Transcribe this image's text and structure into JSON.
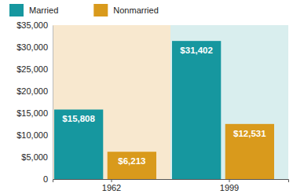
{
  "chart_data": {
    "type": "bar",
    "categories": [
      "1962",
      "1999"
    ],
    "series": [
      {
        "name": "Married",
        "color": "#16979f",
        "values": [
          15808,
          31402
        ],
        "value_labels": [
          "$15,808",
          "$31,402"
        ]
      },
      {
        "name": "Nonmarried",
        "color": "#d99a1c",
        "values": [
          6213,
          12531
        ],
        "value_labels": [
          "$6,213",
          "$12,531"
        ]
      }
    ],
    "ylim": [
      0,
      35000
    ],
    "yticks": [
      {
        "value": 0,
        "label": "0"
      },
      {
        "value": 5000,
        "label": "$5,000"
      },
      {
        "value": 10000,
        "label": "$10,000"
      },
      {
        "value": 15000,
        "label": "$15,000"
      },
      {
        "value": 20000,
        "label": "$20,000"
      },
      {
        "value": 25000,
        "label": "$25,000"
      },
      {
        "value": 30000,
        "label": "$30,000"
      },
      {
        "value": 35000,
        "label": "$35,000"
      }
    ],
    "grid": false,
    "legend": "top-left",
    "data_labels": true
  }
}
